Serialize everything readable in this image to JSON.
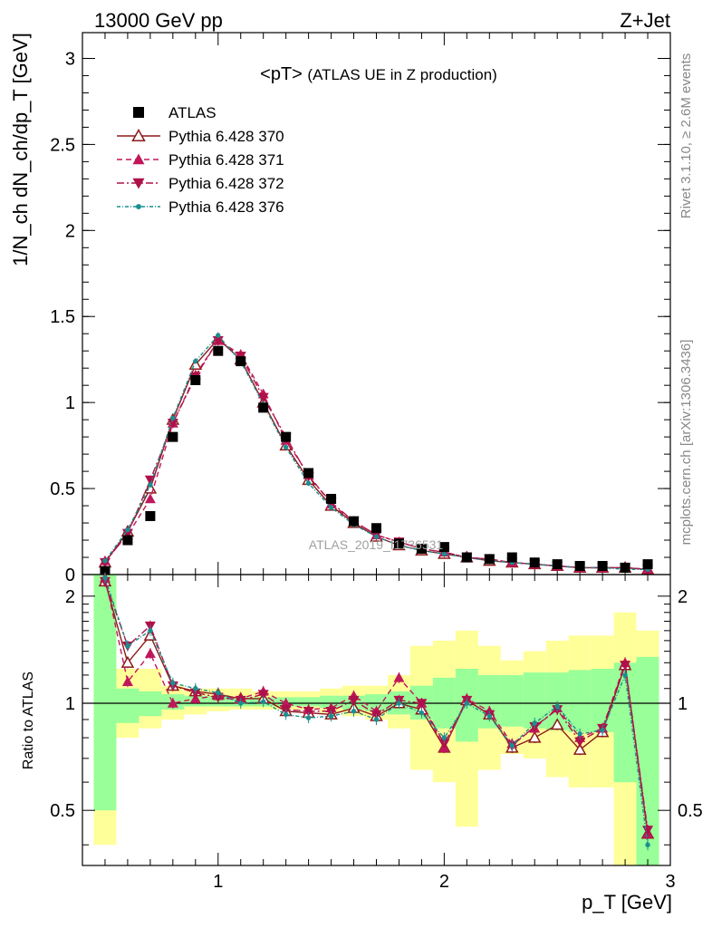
{
  "header": {
    "left": "13000 GeV pp",
    "right": "Z+Jet"
  },
  "title": {
    "main": "<pT>",
    "sub": "(ATLAS UE in Z production)"
  },
  "side_labels": {
    "rivet": "Rivet 3.1.10, ≥ 2.6M events",
    "mcplots": "mcplots.cern.ch [arXiv:1306.3436]"
  },
  "watermark": "ATLAS_2019_I1736531",
  "axes": {
    "top_ylabel": "1/N_ch dN_ch/dp_T [GeV]",
    "bottom_ylabel": "Ratio to ATLAS",
    "xlabel": "p_T [GeV]",
    "top_y_ticks": [
      "0",
      "0.5",
      "1",
      "1.5",
      "2",
      "2.5",
      "3"
    ],
    "bottom_y_ticks": [
      "0.5",
      "1",
      "2"
    ],
    "x_ticks": [
      "1",
      "2",
      "3"
    ]
  },
  "legend": [
    {
      "label": "ATLAS",
      "color": "#000000",
      "marker": "square"
    },
    {
      "label": "Pythia 6.428 370",
      "color": "#8b1a1a",
      "marker": "open-triangle-up",
      "line": "solid"
    },
    {
      "label": "Pythia 6.428 371",
      "color": "#c0175a",
      "marker": "triangle-up",
      "line": "dashed"
    },
    {
      "label": "Pythia 6.428 372",
      "color": "#b0104a",
      "marker": "triangle-down",
      "line": "dashdot"
    },
    {
      "label": "Pythia 6.428 376",
      "color": "#1a8f8f",
      "marker": "dot",
      "line": "dashdot"
    }
  ],
  "chart_data": {
    "type": "line",
    "x_range": [
      0.4,
      3.0
    ],
    "top_ylim": [
      0,
      3.15
    ],
    "ratio_ylim": [
      0.35,
      2.3
    ],
    "ratio_log_scale": true,
    "x": [
      0.5,
      0.6,
      0.7,
      0.8,
      0.9,
      1.0,
      1.1,
      1.2,
      1.3,
      1.4,
      1.5,
      1.6,
      1.7,
      1.8,
      1.9,
      2.0,
      2.1,
      2.2,
      2.3,
      2.4,
      2.5,
      2.6,
      2.7,
      2.8,
      2.9
    ],
    "data": [
      0.02,
      0.2,
      0.34,
      0.8,
      1.13,
      1.3,
      1.24,
      0.97,
      0.8,
      0.59,
      0.44,
      0.31,
      0.27,
      0.18,
      0.15,
      0.16,
      0.1,
      0.09,
      0.1,
      0.07,
      0.06,
      0.05,
      0.05,
      0.04,
      0.06
    ],
    "series": [
      {
        "name": "Pythia 6.428 370",
        "color": "#8b1a1a",
        "values": [
          0.07,
          0.25,
          0.5,
          0.9,
          1.22,
          1.37,
          1.25,
          1.0,
          0.75,
          0.55,
          0.4,
          0.3,
          0.22,
          0.17,
          0.14,
          0.12,
          0.1,
          0.08,
          0.07,
          0.06,
          0.05,
          0.04,
          0.04,
          0.04,
          0.03
        ],
        "ratio": [
          2.2,
          1.3,
          1.55,
          1.12,
          1.08,
          1.06,
          1.03,
          1.03,
          0.95,
          0.94,
          0.93,
          0.97,
          0.92,
          1.0,
          0.96,
          0.75,
          1.02,
          0.93,
          0.75,
          0.8,
          0.87,
          0.74,
          0.83,
          1.28,
          0.43
        ]
      },
      {
        "name": "Pythia 6.428 371",
        "color": "#c0175a",
        "values": [
          0.08,
          0.23,
          0.44,
          0.88,
          1.16,
          1.36,
          1.28,
          1.05,
          0.78,
          0.58,
          0.41,
          0.31,
          0.23,
          0.19,
          0.15,
          0.13,
          0.1,
          0.09,
          0.07,
          0.06,
          0.05,
          0.04,
          0.04,
          0.04,
          0.03
        ],
        "ratio": [
          2.25,
          1.15,
          1.38,
          1.0,
          1.03,
          1.05,
          1.03,
          1.08,
          1.0,
          0.96,
          0.97,
          1.05,
          0.95,
          1.18,
          1.0,
          0.75,
          1.03,
          0.95,
          0.77,
          0.85,
          0.97,
          0.8,
          0.85,
          1.3,
          0.43
        ]
      },
      {
        "name": "Pythia 6.428 372",
        "color": "#b0104a",
        "values": [
          0.07,
          0.24,
          0.55,
          0.88,
          1.15,
          1.36,
          1.27,
          1.03,
          0.8,
          0.57,
          0.42,
          0.31,
          0.23,
          0.19,
          0.15,
          0.13,
          0.1,
          0.09,
          0.07,
          0.06,
          0.05,
          0.04,
          0.04,
          0.04,
          0.03
        ],
        "ratio": [
          2.2,
          1.45,
          1.65,
          1.12,
          1.07,
          1.04,
          1.02,
          1.06,
          0.96,
          0.95,
          0.95,
          1.02,
          0.93,
          1.02,
          1.0,
          0.77,
          1.02,
          0.93,
          0.76,
          0.86,
          0.96,
          0.78,
          0.85,
          1.28,
          0.44
        ]
      },
      {
        "name": "Pythia 6.428 376",
        "color": "#1a8f8f",
        "values": [
          0.08,
          0.26,
          0.52,
          0.91,
          1.24,
          1.39,
          1.24,
          0.99,
          0.74,
          0.53,
          0.39,
          0.29,
          0.22,
          0.17,
          0.14,
          0.12,
          0.1,
          0.08,
          0.07,
          0.06,
          0.05,
          0.04,
          0.04,
          0.03,
          0.03
        ],
        "ratio": [
          2.25,
          1.45,
          1.6,
          1.14,
          1.1,
          1.07,
          1.0,
          1.01,
          0.93,
          0.91,
          0.92,
          0.95,
          0.9,
          1.0,
          0.94,
          0.8,
          1.0,
          0.92,
          0.76,
          0.88,
          0.98,
          0.82,
          0.84,
          1.2,
          0.4
        ]
      }
    ],
    "bands": {
      "inner": [
        [
          0.5,
          3.0
        ],
        [
          0.88,
          1.1
        ],
        [
          0.92,
          1.08
        ],
        [
          0.96,
          1.06
        ],
        [
          0.98,
          1.05
        ],
        [
          0.98,
          1.05
        ],
        [
          0.98,
          1.04
        ],
        [
          0.98,
          1.04
        ],
        [
          0.98,
          1.04
        ],
        [
          0.98,
          1.04
        ],
        [
          0.97,
          1.05
        ],
        [
          0.96,
          1.05
        ],
        [
          0.95,
          1.06
        ],
        [
          0.93,
          1.08
        ],
        [
          0.9,
          1.12
        ],
        [
          0.85,
          1.18
        ],
        [
          0.78,
          1.25
        ],
        [
          0.85,
          1.2
        ],
        [
          0.86,
          1.2
        ],
        [
          0.85,
          1.22
        ],
        [
          0.84,
          1.22
        ],
        [
          0.83,
          1.24
        ],
        [
          0.83,
          1.25
        ],
        [
          0.6,
          1.3
        ],
        [
          0.3,
          1.35
        ]
      ],
      "outer": [
        [
          0.4,
          3.5
        ],
        [
          0.8,
          1.25
        ],
        [
          0.85,
          1.25
        ],
        [
          0.9,
          1.12
        ],
        [
          0.93,
          1.1
        ],
        [
          0.95,
          1.1
        ],
        [
          0.96,
          1.1
        ],
        [
          0.96,
          1.08
        ],
        [
          0.96,
          1.08
        ],
        [
          0.96,
          1.08
        ],
        [
          0.94,
          1.1
        ],
        [
          0.92,
          1.12
        ],
        [
          0.9,
          1.12
        ],
        [
          0.85,
          1.2
        ],
        [
          0.65,
          1.45
        ],
        [
          0.6,
          1.5
        ],
        [
          0.45,
          1.6
        ],
        [
          0.65,
          1.45
        ],
        [
          0.72,
          1.32
        ],
        [
          0.7,
          1.4
        ],
        [
          0.62,
          1.5
        ],
        [
          0.58,
          1.55
        ],
        [
          0.58,
          1.55
        ],
        [
          0.3,
          1.8
        ],
        [
          0.25,
          1.6
        ]
      ]
    }
  }
}
